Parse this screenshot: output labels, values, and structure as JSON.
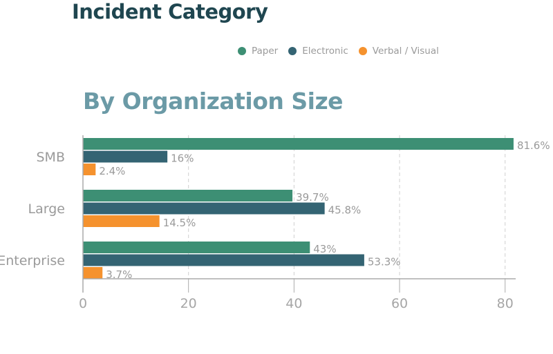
{
  "header": {
    "title": "Incident Category",
    "subtitle": "By Organization Size"
  },
  "legend": {
    "items": [
      {
        "label": "Paper",
        "color": "#3d8f74"
      },
      {
        "label": "Electronic",
        "color": "#346473"
      },
      {
        "label": "Verbal / Visual",
        "color": "#f5922e"
      }
    ]
  },
  "chart_data": {
    "type": "bar",
    "orientation": "horizontal",
    "categories": [
      "SMB",
      "Large",
      "Enterprise"
    ],
    "series": [
      {
        "name": "Paper",
        "color": "#3d8f74",
        "values": [
          81.6,
          39.7,
          43
        ],
        "labels": [
          "81.6%",
          "39.7%",
          "43%"
        ]
      },
      {
        "name": "Electronic",
        "color": "#346473",
        "values": [
          16,
          45.8,
          53.3
        ],
        "labels": [
          "16%",
          "45.8%",
          "53.3%"
        ]
      },
      {
        "name": "Verbal / Visual",
        "color": "#f5922e",
        "values": [
          2.4,
          14.5,
          3.7
        ],
        "labels": [
          "2.4%",
          "14.5%",
          "3.7%"
        ]
      }
    ],
    "xlim": [
      0,
      82
    ],
    "xticks": [
      0,
      20,
      40,
      60,
      80
    ],
    "grid": "vertical-dashed",
    "legend_position": "top"
  }
}
